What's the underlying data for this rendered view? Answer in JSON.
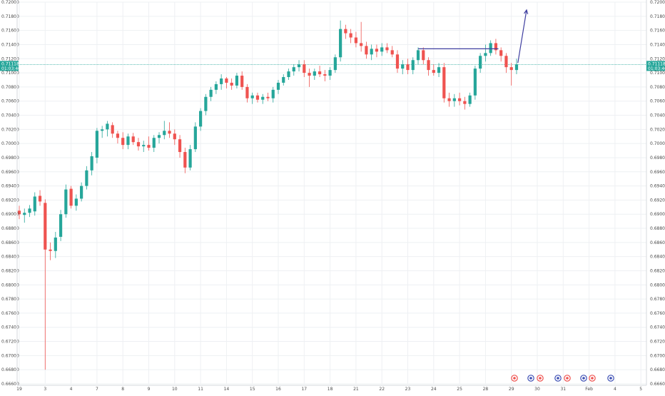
{
  "chart_data": {
    "type": "candlestick",
    "ylim": [
      0.666,
      0.72
    ],
    "y_ticks": [
      "0.72000",
      "0.71800",
      "0.71600",
      "0.71400",
      "0.71200",
      "0.71000",
      "0.70800",
      "0.70600",
      "0.70400",
      "0.70200",
      "0.70000",
      "0.69800",
      "0.69600",
      "0.69400",
      "0.69200",
      "0.69000",
      "0.68800",
      "0.68600",
      "0.68400",
      "0.68200",
      "0.68000",
      "0.67800",
      "0.67600",
      "0.67400",
      "0.67200",
      "0.67000",
      "0.66800",
      "0.66600"
    ],
    "y_tick_values": [
      0.72,
      0.718,
      0.716,
      0.714,
      0.712,
      0.71,
      0.708,
      0.706,
      0.704,
      0.702,
      0.7,
      0.698,
      0.696,
      0.694,
      0.692,
      0.69,
      0.688,
      0.686,
      0.684,
      0.682,
      0.68,
      0.678,
      0.676,
      0.674,
      0.672,
      0.67,
      0.668,
      0.666
    ],
    "x_ticks": [
      {
        "label": "19",
        "day": 0
      },
      {
        "label": "3",
        "day": 1
      },
      {
        "label": "4",
        "day": 2
      },
      {
        "label": "7",
        "day": 3
      },
      {
        "label": "8",
        "day": 4
      },
      {
        "label": "9",
        "day": 5
      },
      {
        "label": "10",
        "day": 6
      },
      {
        "label": "11",
        "day": 7
      },
      {
        "label": "14",
        "day": 8
      },
      {
        "label": "15",
        "day": 9
      },
      {
        "label": "16",
        "day": 10
      },
      {
        "label": "17",
        "day": 11
      },
      {
        "label": "18",
        "day": 12
      },
      {
        "label": "21",
        "day": 13
      },
      {
        "label": "22",
        "day": 14
      },
      {
        "label": "23",
        "day": 15
      },
      {
        "label": "24",
        "day": 16
      },
      {
        "label": "25",
        "day": 17
      },
      {
        "label": "28",
        "day": 18
      },
      {
        "label": "29",
        "day": 19
      },
      {
        "label": "30",
        "day": 20
      },
      {
        "label": "31",
        "day": 21
      },
      {
        "label": "Feb",
        "day": 22
      },
      {
        "label": "4",
        "day": 23
      },
      {
        "label": "5",
        "day": 24
      }
    ],
    "current_price": "0.71118",
    "current_price_value": 0.71118,
    "countdown": "01:03:46",
    "colors": {
      "up": "#26a69a",
      "down": "#ef5350",
      "line": "#3f3fa0",
      "price": "#26a69a",
      "grid": "#eef0f3"
    },
    "series": [
      {
        "t": 0.0,
        "o": 0.6905,
        "h": 0.6912,
        "l": 0.6893,
        "c": 0.69
      },
      {
        "t": 0.2,
        "o": 0.6899,
        "h": 0.6908,
        "l": 0.6888,
        "c": 0.6902
      },
      {
        "t": 0.4,
        "o": 0.6902,
        "h": 0.6913,
        "l": 0.6896,
        "c": 0.6908
      },
      {
        "t": 0.6,
        "o": 0.6904,
        "h": 0.6931,
        "l": 0.6898,
        "c": 0.6925
      },
      {
        "t": 0.8,
        "o": 0.6926,
        "h": 0.6934,
        "l": 0.6912,
        "c": 0.6918
      },
      {
        "t": 1.0,
        "o": 0.6916,
        "h": 0.6921,
        "l": 0.668,
        "c": 0.685
      },
      {
        "t": 1.2,
        "o": 0.685,
        "h": 0.686,
        "l": 0.6835,
        "c": 0.6848
      },
      {
        "t": 1.4,
        "o": 0.6848,
        "h": 0.6875,
        "l": 0.6838,
        "c": 0.6867
      },
      {
        "t": 1.6,
        "o": 0.6868,
        "h": 0.6906,
        "l": 0.6862,
        "c": 0.69
      },
      {
        "t": 1.8,
        "o": 0.69,
        "h": 0.6942,
        "l": 0.6895,
        "c": 0.6935
      },
      {
        "t": 2.0,
        "o": 0.6936,
        "h": 0.694,
        "l": 0.6908,
        "c": 0.6912
      },
      {
        "t": 2.2,
        "o": 0.6912,
        "h": 0.6928,
        "l": 0.6905,
        "c": 0.6922
      },
      {
        "t": 2.4,
        "o": 0.6922,
        "h": 0.6945,
        "l": 0.6918,
        "c": 0.694
      },
      {
        "t": 2.6,
        "o": 0.694,
        "h": 0.6968,
        "l": 0.6935,
        "c": 0.6962
      },
      {
        "t": 2.8,
        "o": 0.6962,
        "h": 0.6988,
        "l": 0.6955,
        "c": 0.6982
      },
      {
        "t": 3.0,
        "o": 0.698,
        "h": 0.7022,
        "l": 0.6972,
        "c": 0.7018
      },
      {
        "t": 3.2,
        "o": 0.7018,
        "h": 0.7025,
        "l": 0.7008,
        "c": 0.702
      },
      {
        "t": 3.4,
        "o": 0.702,
        "h": 0.7032,
        "l": 0.701,
        "c": 0.7028
      },
      {
        "t": 3.6,
        "o": 0.7026,
        "h": 0.703,
        "l": 0.7008,
        "c": 0.7014
      },
      {
        "t": 3.8,
        "o": 0.7014,
        "h": 0.7018,
        "l": 0.7,
        "c": 0.7008
      },
      {
        "t": 4.0,
        "o": 0.7008,
        "h": 0.7016,
        "l": 0.6992,
        "c": 0.6998
      },
      {
        "t": 4.2,
        "o": 0.6998,
        "h": 0.7014,
        "l": 0.6992,
        "c": 0.701
      },
      {
        "t": 4.4,
        "o": 0.701,
        "h": 0.7015,
        "l": 0.6998,
        "c": 0.7002
      },
      {
        "t": 4.6,
        "o": 0.7002,
        "h": 0.7008,
        "l": 0.699,
        "c": 0.6996
      },
      {
        "t": 4.8,
        "o": 0.6996,
        "h": 0.7004,
        "l": 0.6988,
        "c": 0.6998
      },
      {
        "t": 5.0,
        "o": 0.6998,
        "h": 0.701,
        "l": 0.699,
        "c": 0.6994
      },
      {
        "t": 5.2,
        "o": 0.6994,
        "h": 0.7012,
        "l": 0.6988,
        "c": 0.7008
      },
      {
        "t": 5.4,
        "o": 0.7008,
        "h": 0.7016,
        "l": 0.7,
        "c": 0.7012
      },
      {
        "t": 5.6,
        "o": 0.7012,
        "h": 0.7032,
        "l": 0.7006,
        "c": 0.7018
      },
      {
        "t": 5.8,
        "o": 0.7018,
        "h": 0.703,
        "l": 0.7008,
        "c": 0.7014
      },
      {
        "t": 6.0,
        "o": 0.7014,
        "h": 0.702,
        "l": 0.6998,
        "c": 0.7006
      },
      {
        "t": 6.2,
        "o": 0.7006,
        "h": 0.7012,
        "l": 0.698,
        "c": 0.6988
      },
      {
        "t": 6.4,
        "o": 0.6988,
        "h": 0.6994,
        "l": 0.6958,
        "c": 0.6966
      },
      {
        "t": 6.6,
        "o": 0.6966,
        "h": 0.6998,
        "l": 0.6962,
        "c": 0.6992
      },
      {
        "t": 6.8,
        "o": 0.6992,
        "h": 0.703,
        "l": 0.6988,
        "c": 0.7024
      },
      {
        "t": 7.0,
        "o": 0.7024,
        "h": 0.705,
        "l": 0.7018,
        "c": 0.7046
      },
      {
        "t": 7.2,
        "o": 0.7046,
        "h": 0.707,
        "l": 0.704,
        "c": 0.7066
      },
      {
        "t": 7.4,
        "o": 0.7066,
        "h": 0.708,
        "l": 0.706,
        "c": 0.7076
      },
      {
        "t": 7.6,
        "o": 0.7076,
        "h": 0.7088,
        "l": 0.707,
        "c": 0.7084
      },
      {
        "t": 7.8,
        "o": 0.7084,
        "h": 0.7098,
        "l": 0.7076,
        "c": 0.7092
      },
      {
        "t": 8.0,
        "o": 0.7092,
        "h": 0.7094,
        "l": 0.7078,
        "c": 0.7086
      },
      {
        "t": 8.2,
        "o": 0.7086,
        "h": 0.7092,
        "l": 0.7076,
        "c": 0.7082
      },
      {
        "t": 8.4,
        "o": 0.7082,
        "h": 0.71,
        "l": 0.7078,
        "c": 0.7096
      },
      {
        "t": 8.6,
        "o": 0.7096,
        "h": 0.7102,
        "l": 0.7076,
        "c": 0.708
      },
      {
        "t": 8.8,
        "o": 0.708,
        "h": 0.7084,
        "l": 0.7058,
        "c": 0.7064
      },
      {
        "t": 9.0,
        "o": 0.7064,
        "h": 0.7072,
        "l": 0.7056,
        "c": 0.7068
      },
      {
        "t": 9.2,
        "o": 0.7068,
        "h": 0.7072,
        "l": 0.7058,
        "c": 0.7062
      },
      {
        "t": 9.4,
        "o": 0.7062,
        "h": 0.707,
        "l": 0.7056,
        "c": 0.7066
      },
      {
        "t": 9.6,
        "o": 0.7066,
        "h": 0.7072,
        "l": 0.706,
        "c": 0.7064
      },
      {
        "t": 9.8,
        "o": 0.7064,
        "h": 0.708,
        "l": 0.7058,
        "c": 0.7076
      },
      {
        "t": 10.0,
        "o": 0.7076,
        "h": 0.709,
        "l": 0.707,
        "c": 0.7086
      },
      {
        "t": 10.2,
        "o": 0.7086,
        "h": 0.7098,
        "l": 0.7082,
        "c": 0.7094
      },
      {
        "t": 10.4,
        "o": 0.7094,
        "h": 0.7106,
        "l": 0.709,
        "c": 0.7102
      },
      {
        "t": 10.6,
        "o": 0.7102,
        "h": 0.7112,
        "l": 0.7096,
        "c": 0.7108
      },
      {
        "t": 10.8,
        "o": 0.7108,
        "h": 0.7118,
        "l": 0.7102,
        "c": 0.7112
      },
      {
        "t": 11.0,
        "o": 0.7112,
        "h": 0.7118,
        "l": 0.7094,
        "c": 0.71
      },
      {
        "t": 11.2,
        "o": 0.71,
        "h": 0.7106,
        "l": 0.708,
        "c": 0.7096
      },
      {
        "t": 11.4,
        "o": 0.7096,
        "h": 0.7106,
        "l": 0.709,
        "c": 0.7102
      },
      {
        "t": 11.6,
        "o": 0.7102,
        "h": 0.711,
        "l": 0.7094,
        "c": 0.7098
      },
      {
        "t": 11.8,
        "o": 0.7098,
        "h": 0.7104,
        "l": 0.7088,
        "c": 0.7096
      },
      {
        "t": 12.0,
        "o": 0.7096,
        "h": 0.7108,
        "l": 0.709,
        "c": 0.7104
      },
      {
        "t": 12.2,
        "o": 0.7104,
        "h": 0.7126,
        "l": 0.71,
        "c": 0.7122
      },
      {
        "t": 12.4,
        "o": 0.7122,
        "h": 0.7174,
        "l": 0.7116,
        "c": 0.7162
      },
      {
        "t": 12.6,
        "o": 0.7162,
        "h": 0.7168,
        "l": 0.7148,
        "c": 0.7156
      },
      {
        "t": 12.8,
        "o": 0.7156,
        "h": 0.7162,
        "l": 0.7142,
        "c": 0.715
      },
      {
        "t": 13.0,
        "o": 0.715,
        "h": 0.7158,
        "l": 0.7136,
        "c": 0.7142
      },
      {
        "t": 13.2,
        "o": 0.7142,
        "h": 0.7172,
        "l": 0.713,
        "c": 0.7138
      },
      {
        "t": 13.4,
        "o": 0.7138,
        "h": 0.7144,
        "l": 0.712,
        "c": 0.7126
      },
      {
        "t": 13.6,
        "o": 0.7126,
        "h": 0.714,
        "l": 0.7118,
        "c": 0.7134
      },
      {
        "t": 13.8,
        "o": 0.7134,
        "h": 0.714,
        "l": 0.7122,
        "c": 0.713
      },
      {
        "t": 14.0,
        "o": 0.713,
        "h": 0.7142,
        "l": 0.7124,
        "c": 0.7136
      },
      {
        "t": 14.2,
        "o": 0.7136,
        "h": 0.7142,
        "l": 0.7128,
        "c": 0.7132
      },
      {
        "t": 14.4,
        "o": 0.7132,
        "h": 0.7138,
        "l": 0.7122,
        "c": 0.7126
      },
      {
        "t": 14.6,
        "o": 0.7126,
        "h": 0.7132,
        "l": 0.71,
        "c": 0.7106
      },
      {
        "t": 14.8,
        "o": 0.7106,
        "h": 0.7118,
        "l": 0.7098,
        "c": 0.7112
      },
      {
        "t": 15.0,
        "o": 0.7112,
        "h": 0.712,
        "l": 0.7098,
        "c": 0.7104
      },
      {
        "t": 15.2,
        "o": 0.7104,
        "h": 0.7122,
        "l": 0.7098,
        "c": 0.7118
      },
      {
        "t": 15.4,
        "o": 0.7118,
        "h": 0.7136,
        "l": 0.7112,
        "c": 0.7132
      },
      {
        "t": 15.6,
        "o": 0.7132,
        "h": 0.7136,
        "l": 0.7112,
        "c": 0.7118
      },
      {
        "t": 15.8,
        "o": 0.7118,
        "h": 0.7122,
        "l": 0.7096,
        "c": 0.7104
      },
      {
        "t": 16.0,
        "o": 0.7104,
        "h": 0.7112,
        "l": 0.7096,
        "c": 0.71
      },
      {
        "t": 16.2,
        "o": 0.71,
        "h": 0.7114,
        "l": 0.7094,
        "c": 0.7108
      },
      {
        "t": 16.4,
        "o": 0.7108,
        "h": 0.7114,
        "l": 0.7058,
        "c": 0.7064
      },
      {
        "t": 16.6,
        "o": 0.7064,
        "h": 0.7072,
        "l": 0.7052,
        "c": 0.706
      },
      {
        "t": 16.8,
        "o": 0.706,
        "h": 0.707,
        "l": 0.7052,
        "c": 0.7064
      },
      {
        "t": 17.0,
        "o": 0.7064,
        "h": 0.7072,
        "l": 0.7054,
        "c": 0.706
      },
      {
        "t": 17.2,
        "o": 0.706,
        "h": 0.7066,
        "l": 0.7048,
        "c": 0.7056
      },
      {
        "t": 17.4,
        "o": 0.7056,
        "h": 0.7072,
        "l": 0.7052,
        "c": 0.7068
      },
      {
        "t": 17.6,
        "o": 0.7068,
        "h": 0.711,
        "l": 0.7062,
        "c": 0.7106
      },
      {
        "t": 17.8,
        "o": 0.7106,
        "h": 0.7128,
        "l": 0.71,
        "c": 0.7124
      },
      {
        "t": 18.0,
        "o": 0.7124,
        "h": 0.714,
        "l": 0.7116,
        "c": 0.7128
      },
      {
        "t": 18.2,
        "o": 0.7128,
        "h": 0.7146,
        "l": 0.7124,
        "c": 0.7142
      },
      {
        "t": 18.4,
        "o": 0.7142,
        "h": 0.7148,
        "l": 0.7126,
        "c": 0.7132
      },
      {
        "t": 18.6,
        "o": 0.7132,
        "h": 0.7136,
        "l": 0.7116,
        "c": 0.7124
      },
      {
        "t": 18.8,
        "o": 0.7124,
        "h": 0.7128,
        "l": 0.71,
        "c": 0.7108
      },
      {
        "t": 19.0,
        "o": 0.7108,
        "h": 0.7114,
        "l": 0.7082,
        "c": 0.7104
      },
      {
        "t": 19.2,
        "o": 0.7104,
        "h": 0.712,
        "l": 0.7098,
        "c": 0.7112
      }
    ]
  }
}
